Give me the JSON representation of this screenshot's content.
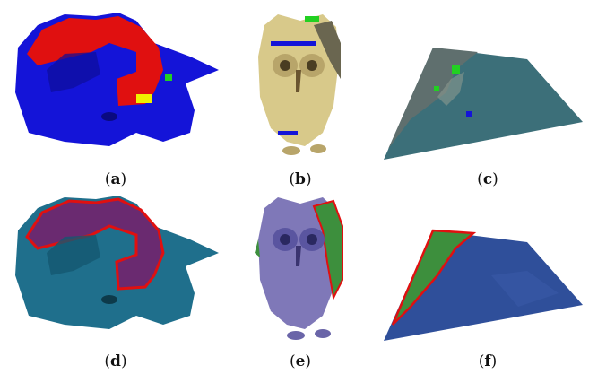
{
  "panels": [
    {
      "id": "a",
      "caption_open": "(",
      "caption_letter": "a",
      "caption_close": ")"
    },
    {
      "id": "b",
      "caption_open": "(",
      "caption_letter": "b",
      "caption_close": ")"
    },
    {
      "id": "c",
      "caption_open": "(",
      "caption_letter": "c",
      "caption_close": ")"
    },
    {
      "id": "d",
      "caption_open": "(",
      "caption_letter": "d",
      "caption_close": ")"
    },
    {
      "id": "e",
      "caption_open": "(",
      "caption_letter": "e",
      "caption_close": ")"
    },
    {
      "id": "f",
      "caption_open": "(",
      "caption_letter": "f",
      "caption_close": ")"
    }
  ],
  "colors": {
    "seg_blue": "#1414d8",
    "seg_red": "#e01010",
    "seg_green": "#22d022",
    "seg_yellow": "#f0f000",
    "teal": "#1f6f8c",
    "purple": "#6a2a70",
    "owl_tan": "#d8c98a",
    "owl_purple": "#7f78b8",
    "water_blue": "#2f4f9a",
    "shore_green": "#3d8f3d"
  }
}
